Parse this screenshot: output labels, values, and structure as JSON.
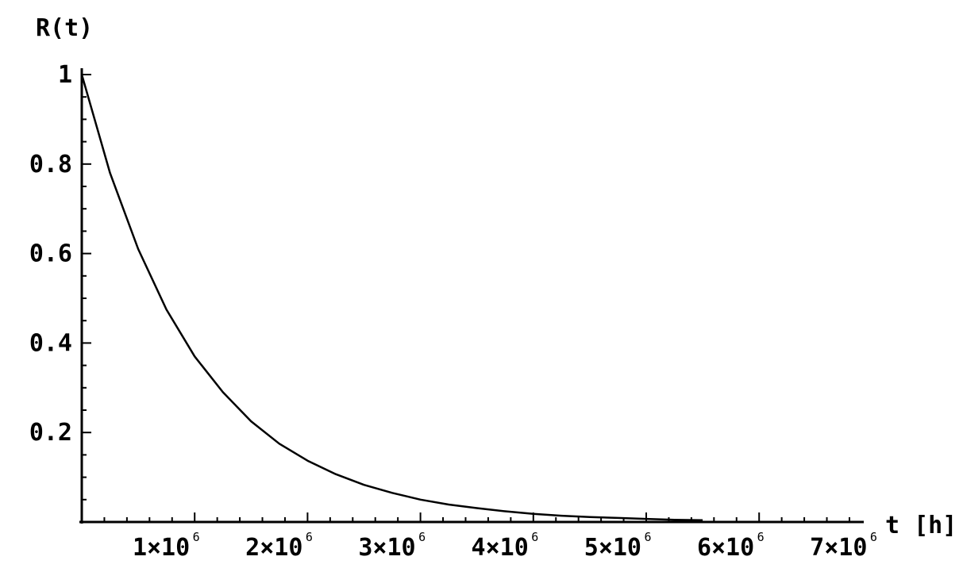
{
  "chart_data": {
    "type": "line",
    "title": "",
    "xlabel": "t [h]",
    "ylabel": "R(t)",
    "xlim": [
      0,
      7000000
    ],
    "ylim": [
      0,
      1
    ],
    "grid": false,
    "x_ticks": [
      {
        "value": 1000000,
        "mantissa": "1",
        "base": "×10",
        "exp": "6"
      },
      {
        "value": 2000000,
        "mantissa": "2",
        "base": "×10",
        "exp": "6"
      },
      {
        "value": 3000000,
        "mantissa": "3",
        "base": "×10",
        "exp": "6"
      },
      {
        "value": 4000000,
        "mantissa": "4",
        "base": "×10",
        "exp": "6"
      },
      {
        "value": 5000000,
        "mantissa": "5",
        "base": "×10",
        "exp": "6"
      },
      {
        "value": 6000000,
        "mantissa": "6",
        "base": "×10",
        "exp": "6"
      },
      {
        "value": 7000000,
        "mantissa": "7",
        "base": "×10",
        "exp": "6"
      }
    ],
    "y_ticks": [
      {
        "value": 0.2,
        "label": "0.2"
      },
      {
        "value": 0.4,
        "label": "0.4"
      },
      {
        "value": 0.6,
        "label": "0.6"
      },
      {
        "value": 0.8,
        "label": "0.8"
      },
      {
        "value": 1.0,
        "label": "1"
      }
    ],
    "series": [
      {
        "x": [
          0,
          250000,
          500000,
          750000,
          1000000,
          1250000,
          1500000,
          1750000,
          2000000,
          2250000,
          2500000,
          2750000,
          3000000,
          3250000,
          3500000,
          3750000,
          4000000,
          4250000,
          4500000,
          4750000,
          5000000,
          5250000,
          5500000
        ],
        "y": [
          1.0,
          0.78,
          0.61,
          0.475,
          0.37,
          0.29,
          0.225,
          0.175,
          0.137,
          0.107,
          0.083,
          0.065,
          0.05,
          0.039,
          0.031,
          0.024,
          0.018,
          0.014,
          0.011,
          0.009,
          0.007,
          0.005,
          0.004
        ]
      }
    ]
  }
}
